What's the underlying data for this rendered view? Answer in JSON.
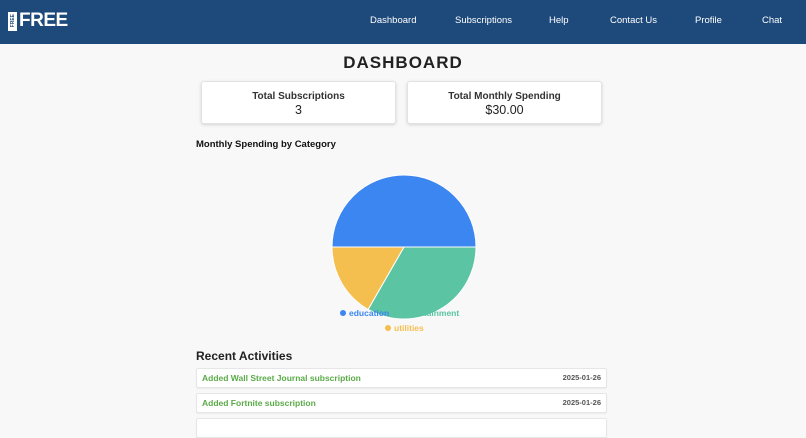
{
  "brand": {
    "logo_small": "FREE",
    "logo_text": "FREE"
  },
  "nav": {
    "items": [
      {
        "label": "Dashboard"
      },
      {
        "label": "Subscriptions"
      },
      {
        "label": "Help"
      },
      {
        "label": "Contact Us"
      },
      {
        "label": "Profile"
      },
      {
        "label": "Chat"
      }
    ]
  },
  "page": {
    "title": "DASHBOARD"
  },
  "stats": {
    "total_subscriptions": {
      "label": "Total Subscriptions",
      "value": "3"
    },
    "total_spending": {
      "label": "Total Monthly Spending",
      "value": "$30.00"
    }
  },
  "chart_section": {
    "heading": "Monthly Spending by Category"
  },
  "chart_data": {
    "type": "pie",
    "title": "",
    "categories": [
      "education",
      "entertainment",
      "utilities"
    ],
    "values": [
      50,
      33.3,
      16.7
    ],
    "colors": [
      "#3b86f1",
      "#5bc4a2",
      "#f5bf50"
    ],
    "legend_position": "bottom"
  },
  "legend": {
    "education": "education",
    "entertainment": "entertainment",
    "utilities": "utilities"
  },
  "recent": {
    "heading": "Recent Activities",
    "items": [
      {
        "text": "Added Wall Street Journal subscription",
        "date": "2025-01-26"
      },
      {
        "text": "Added Fortnite subscription",
        "date": "2025-01-26"
      }
    ]
  },
  "colors": {
    "navbar": "#1e4a7b",
    "activity_text": "#5aab47"
  }
}
